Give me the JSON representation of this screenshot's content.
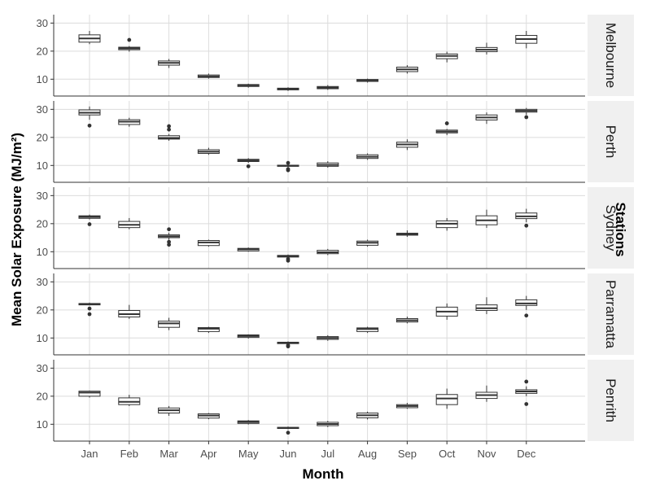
{
  "chart_data": {
    "type": "boxplot",
    "facet_layout": "vertical",
    "xlabel": "Month",
    "ylabel": "Mean Solar Exposure (MJ/m²)",
    "legend_title": "Stations",
    "categories": [
      "Jan",
      "Feb",
      "Mar",
      "Apr",
      "May",
      "Jun",
      "Jul",
      "Aug",
      "Sep",
      "Oct",
      "Nov",
      "Dec"
    ],
    "ylim": [
      4,
      33
    ],
    "yticks": [
      10,
      20,
      30
    ],
    "grid": true,
    "panels": [
      {
        "name": "Melbourne",
        "boxes": [
          {
            "low": 22.5,
            "q1": 23.2,
            "median": 24.5,
            "q3": 25.8,
            "high": 27.2,
            "outliers": []
          },
          {
            "low": 19.8,
            "q1": 20.5,
            "median": 21.0,
            "q3": 21.4,
            "high": 21.8,
            "outliers": [
              24.0
            ]
          },
          {
            "low": 14.0,
            "q1": 15.0,
            "median": 15.8,
            "q3": 16.5,
            "high": 17.2,
            "outliers": []
          },
          {
            "low": 10.2,
            "q1": 10.6,
            "median": 11.0,
            "q3": 11.5,
            "high": 12.0,
            "outliers": []
          },
          {
            "low": 7.0,
            "q1": 7.4,
            "median": 7.8,
            "q3": 8.1,
            "high": 8.4,
            "outliers": []
          },
          {
            "low": 5.8,
            "q1": 6.2,
            "median": 6.5,
            "q3": 6.8,
            "high": 7.1,
            "outliers": []
          },
          {
            "low": 6.2,
            "q1": 6.6,
            "median": 7.0,
            "q3": 7.4,
            "high": 7.9,
            "outliers": []
          },
          {
            "low": 8.8,
            "q1": 9.2,
            "median": 9.6,
            "q3": 9.9,
            "high": 10.2,
            "outliers": []
          },
          {
            "low": 12.0,
            "q1": 12.7,
            "median": 13.5,
            "q3": 14.3,
            "high": 15.0,
            "outliers": []
          },
          {
            "low": 16.0,
            "q1": 17.3,
            "median": 18.3,
            "q3": 19.0,
            "high": 19.8,
            "outliers": []
          },
          {
            "low": 18.8,
            "q1": 19.8,
            "median": 20.5,
            "q3": 21.3,
            "high": 23.0,
            "outliers": []
          },
          {
            "low": 21.0,
            "q1": 22.8,
            "median": 24.3,
            "q3": 25.6,
            "high": 27.2,
            "outliers": []
          }
        ]
      },
      {
        "name": "Perth",
        "boxes": [
          {
            "low": 26.3,
            "q1": 28.0,
            "median": 28.8,
            "q3": 29.8,
            "high": 31.0,
            "outliers": [
              24.2
            ]
          },
          {
            "low": 23.8,
            "q1": 24.6,
            "median": 25.6,
            "q3": 26.3,
            "high": 27.0,
            "outliers": []
          },
          {
            "low": 18.8,
            "q1": 19.4,
            "median": 19.8,
            "q3": 20.6,
            "high": 21.2,
            "outliers": [
              22.8,
              24.0
            ]
          },
          {
            "low": 13.8,
            "q1": 14.3,
            "median": 14.9,
            "q3": 15.6,
            "high": 16.3,
            "outliers": []
          },
          {
            "low": 10.9,
            "q1": 11.4,
            "median": 11.8,
            "q3": 12.2,
            "high": 12.6,
            "outliers": [
              9.7
            ]
          },
          {
            "low": 9.3,
            "q1": 9.7,
            "median": 9.9,
            "q3": 10.1,
            "high": 10.3,
            "outliers": [
              8.3,
              8.7,
              10.9
            ]
          },
          {
            "low": 9.2,
            "q1": 9.7,
            "median": 10.2,
            "q3": 10.9,
            "high": 11.5,
            "outliers": []
          },
          {
            "low": 12.0,
            "q1": 12.5,
            "median": 13.1,
            "q3": 13.8,
            "high": 14.3,
            "outliers": []
          },
          {
            "low": 15.5,
            "q1": 16.5,
            "median": 17.5,
            "q3": 18.3,
            "high": 19.3,
            "outliers": []
          },
          {
            "low": 20.8,
            "q1": 21.6,
            "median": 22.1,
            "q3": 22.6,
            "high": 23.0,
            "outliers": [
              25.0
            ]
          },
          {
            "low": 24.8,
            "q1": 26.2,
            "median": 27.1,
            "q3": 28.0,
            "high": 28.9,
            "outliers": []
          },
          {
            "low": 28.0,
            "q1": 29.0,
            "median": 29.5,
            "q3": 30.0,
            "high": 30.5,
            "outliers": [
              27.2
            ]
          }
        ]
      },
      {
        "name": "Sydney",
        "boxes": [
          {
            "low": 21.5,
            "q1": 21.9,
            "median": 22.4,
            "q3": 22.8,
            "high": 23.2,
            "outliers": [
              19.8
            ]
          },
          {
            "low": 18.0,
            "q1": 18.6,
            "median": 19.6,
            "q3": 20.8,
            "high": 22.0,
            "outliers": []
          },
          {
            "low": 14.2,
            "q1": 15.0,
            "median": 15.5,
            "q3": 16.0,
            "high": 16.8,
            "outliers": [
              12.5,
              13.5,
              18.0
            ]
          },
          {
            "low": 11.8,
            "q1": 12.2,
            "median": 13.3,
            "q3": 14.0,
            "high": 14.3,
            "outliers": []
          },
          {
            "low": 10.0,
            "q1": 10.3,
            "median": 10.9,
            "q3": 11.2,
            "high": 11.5,
            "outliers": []
          },
          {
            "low": 7.8,
            "q1": 8.1,
            "median": 8.4,
            "q3": 8.7,
            "high": 9.0,
            "outliers": [
              6.8,
              7.4
            ]
          },
          {
            "low": 8.8,
            "q1": 9.3,
            "median": 9.8,
            "q3": 10.5,
            "high": 11.0,
            "outliers": []
          },
          {
            "low": 11.8,
            "q1": 12.3,
            "median": 13.2,
            "q3": 13.8,
            "high": 14.3,
            "outliers": []
          },
          {
            "low": 15.3,
            "q1": 15.9,
            "median": 16.2,
            "q3": 16.6,
            "high": 17.6,
            "outliers": []
          },
          {
            "low": 17.5,
            "q1": 18.6,
            "median": 20.0,
            "q3": 21.0,
            "high": 22.0,
            "outliers": []
          },
          {
            "low": 18.5,
            "q1": 19.6,
            "median": 21.2,
            "q3": 22.8,
            "high": 25.0,
            "outliers": []
          },
          {
            "low": 20.5,
            "q1": 21.8,
            "median": 22.6,
            "q3": 23.8,
            "high": 25.3,
            "outliers": [
              19.3
            ]
          }
        ]
      },
      {
        "name": "Parramatta",
        "boxes": [
          {
            "low": 21.6,
            "q1": 21.8,
            "median": 22.0,
            "q3": 22.3,
            "high": 22.6,
            "outliers": [
              18.5,
              20.5
            ]
          },
          {
            "low": 16.8,
            "q1": 17.5,
            "median": 18.5,
            "q3": 19.8,
            "high": 21.8,
            "outliers": []
          },
          {
            "low": 12.8,
            "q1": 13.8,
            "median": 15.2,
            "q3": 16.0,
            "high": 17.2,
            "outliers": []
          },
          {
            "low": 11.8,
            "q1": 12.3,
            "median": 13.3,
            "q3": 13.7,
            "high": 14.0,
            "outliers": []
          },
          {
            "low": 9.8,
            "q1": 10.2,
            "median": 10.7,
            "q3": 11.1,
            "high": 11.3,
            "outliers": []
          },
          {
            "low": 7.8,
            "q1": 8.0,
            "median": 8.3,
            "q3": 8.5,
            "high": 8.8,
            "outliers": [
              7.0,
              7.4
            ]
          },
          {
            "low": 9.0,
            "q1": 9.5,
            "median": 10.0,
            "q3": 10.5,
            "high": 11.0,
            "outliers": []
          },
          {
            "low": 11.8,
            "q1": 12.3,
            "median": 13.2,
            "q3": 13.6,
            "high": 14.0,
            "outliers": []
          },
          {
            "low": 15.2,
            "q1": 15.7,
            "median": 16.3,
            "q3": 16.9,
            "high": 17.6,
            "outliers": []
          },
          {
            "low": 16.5,
            "q1": 17.8,
            "median": 19.4,
            "q3": 21.0,
            "high": 22.3,
            "outliers": []
          },
          {
            "low": 18.5,
            "q1": 19.8,
            "median": 20.6,
            "q3": 21.8,
            "high": 24.5,
            "outliers": []
          },
          {
            "low": 20.0,
            "q1": 21.6,
            "median": 22.3,
            "q3": 23.6,
            "high": 25.0,
            "outliers": [
              18.0
            ]
          }
        ]
      },
      {
        "name": "Penrith",
        "boxes": [
          {
            "low": 19.5,
            "q1": 20.0,
            "median": 21.3,
            "q3": 21.8,
            "high": 22.0,
            "outliers": []
          },
          {
            "low": 16.5,
            "q1": 17.0,
            "median": 18.0,
            "q3": 19.4,
            "high": 20.5,
            "outliers": []
          },
          {
            "low": 13.0,
            "q1": 14.0,
            "median": 15.0,
            "q3": 15.8,
            "high": 16.5,
            "outliers": []
          },
          {
            "low": 11.8,
            "q1": 12.2,
            "median": 13.1,
            "q3": 13.7,
            "high": 14.0,
            "outliers": []
          },
          {
            "low": 9.9,
            "q1": 10.3,
            "median": 10.8,
            "q3": 11.2,
            "high": 11.5,
            "outliers": []
          },
          {
            "low": 8.2,
            "q1": 8.5,
            "median": 8.7,
            "q3": 8.9,
            "high": 9.2,
            "outliers": [
              7.0
            ]
          },
          {
            "low": 9.0,
            "q1": 9.5,
            "median": 10.1,
            "q3": 10.7,
            "high": 11.2,
            "outliers": []
          },
          {
            "low": 11.7,
            "q1": 12.3,
            "median": 13.2,
            "q3": 14.0,
            "high": 14.5,
            "outliers": []
          },
          {
            "low": 15.5,
            "q1": 15.9,
            "median": 16.5,
            "q3": 17.0,
            "high": 17.6,
            "outliers": []
          },
          {
            "low": 15.5,
            "q1": 17.0,
            "median": 19.2,
            "q3": 20.6,
            "high": 22.7,
            "outliers": []
          },
          {
            "low": 18.0,
            "q1": 19.2,
            "median": 20.4,
            "q3": 21.4,
            "high": 23.8,
            "outliers": []
          },
          {
            "low": 20.0,
            "q1": 21.0,
            "median": 21.7,
            "q3": 22.3,
            "high": 23.5,
            "outliers": [
              17.2,
              25.2
            ]
          }
        ]
      }
    ]
  },
  "colors": {
    "box_outline": "#333333",
    "box_fill": "#ffffff",
    "grid": "#dcdcdc",
    "axis": "#333333",
    "strip_fill": "#f0f0f0"
  }
}
